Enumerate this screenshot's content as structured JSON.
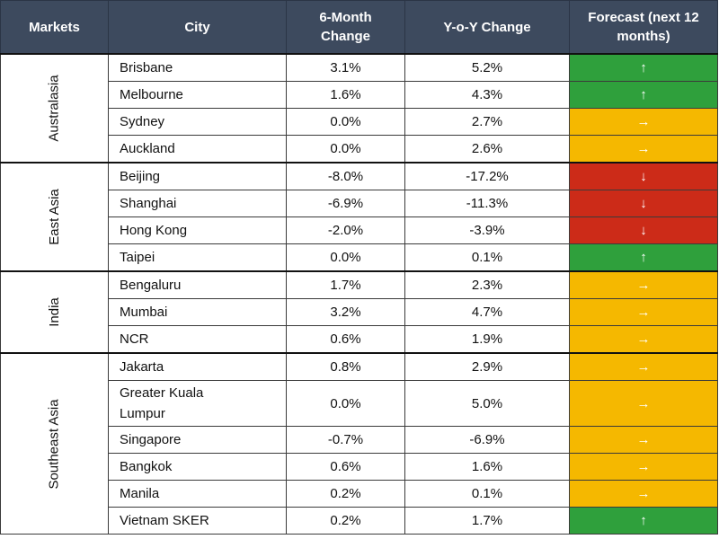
{
  "chart_data": {
    "type": "table",
    "columns": [
      "Markets",
      "City",
      "6-Month Change",
      "Y-o-Y Change",
      "Forecast (next 12 months)"
    ],
    "groups": [
      {
        "market": "Australasia",
        "rows": [
          {
            "city": "Brisbane",
            "six_month": "3.1%",
            "yoy": "5.2%",
            "forecast": "up"
          },
          {
            "city": "Melbourne",
            "six_month": "1.6%",
            "yoy": "4.3%",
            "forecast": "up"
          },
          {
            "city": "Sydney",
            "six_month": "0.0%",
            "yoy": "2.7%",
            "forecast": "flat"
          },
          {
            "city": "Auckland",
            "six_month": "0.0%",
            "yoy": "2.6%",
            "forecast": "flat"
          }
        ]
      },
      {
        "market": "East Asia",
        "rows": [
          {
            "city": "Beijing",
            "six_month": "-8.0%",
            "yoy": "-17.2%",
            "forecast": "down"
          },
          {
            "city": "Shanghai",
            "six_month": "-6.9%",
            "yoy": "-11.3%",
            "forecast": "down"
          },
          {
            "city": "Hong Kong",
            "six_month": "-2.0%",
            "yoy": "-3.9%",
            "forecast": "down"
          },
          {
            "city": "Taipei",
            "six_month": "0.0%",
            "yoy": "0.1%",
            "forecast": "up"
          }
        ]
      },
      {
        "market": "India",
        "rows": [
          {
            "city": "Bengaluru",
            "six_month": "1.7%",
            "yoy": "2.3%",
            "forecast": "flat"
          },
          {
            "city": "Mumbai",
            "six_month": "3.2%",
            "yoy": "4.7%",
            "forecast": "flat"
          },
          {
            "city": "NCR",
            "six_month": "0.6%",
            "yoy": "1.9%",
            "forecast": "flat"
          }
        ]
      },
      {
        "market": "Southeast Asia",
        "rows": [
          {
            "city": "Jakarta",
            "six_month": "0.8%",
            "yoy": "2.9%",
            "forecast": "flat"
          },
          {
            "city": "Greater Kuala Lumpur",
            "six_month": "0.0%",
            "yoy": "5.0%",
            "forecast": "flat"
          },
          {
            "city": "Singapore",
            "six_month": "-0.7%",
            "yoy": "-6.9%",
            "forecast": "flat"
          },
          {
            "city": "Bangkok",
            "six_month": "0.6%",
            "yoy": "1.6%",
            "forecast": "flat"
          },
          {
            "city": "Manila",
            "six_month": "0.2%",
            "yoy": "0.1%",
            "forecast": "flat"
          },
          {
            "city": "Vietnam SKER",
            "six_month": "0.2%",
            "yoy": "1.7%",
            "forecast": "up"
          }
        ]
      }
    ],
    "forecast_symbols": {
      "up": "↑",
      "flat": "→",
      "down": "↓"
    },
    "forecast_colors": {
      "up": "#2fa03c",
      "flat": "#f5b800",
      "down": "#cc2b18"
    },
    "header_color": "#3d4a5e"
  }
}
